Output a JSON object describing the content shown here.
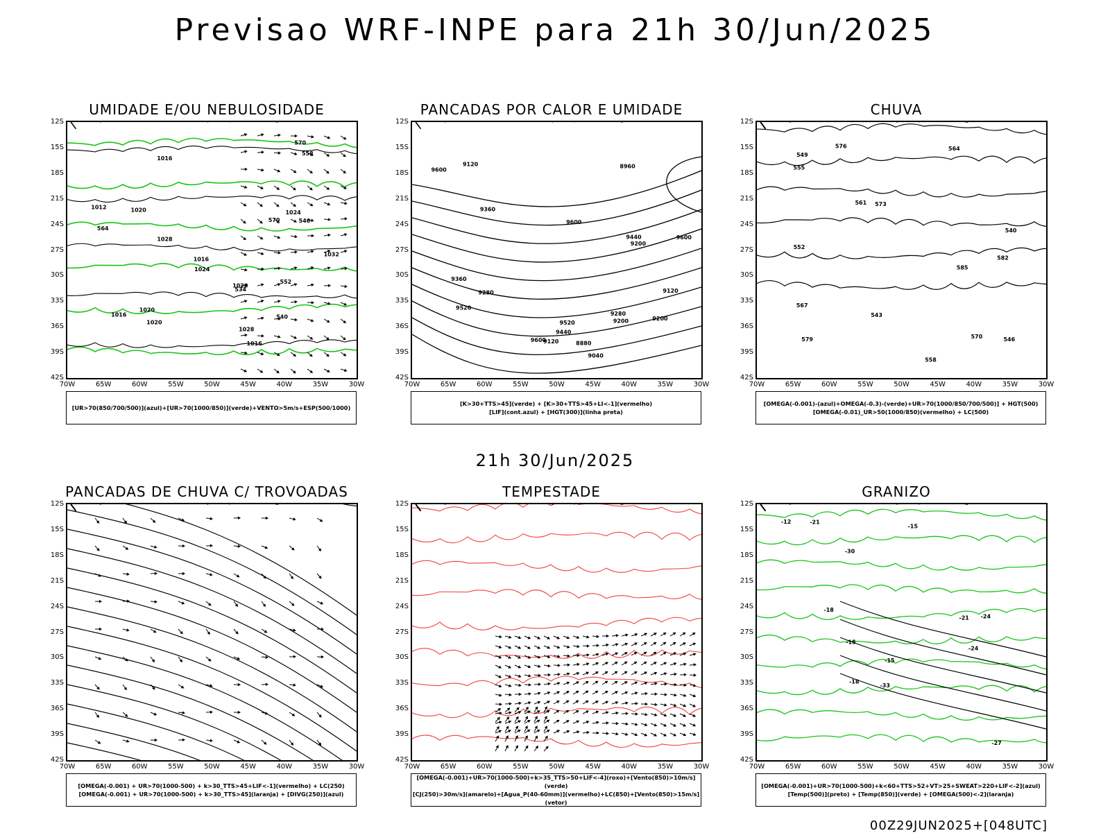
{
  "header": {
    "title": "Previsao WRF-INPE  para 21h 30/Jun/2025"
  },
  "middle": {
    "title": "21h 30/Jun/2025"
  },
  "footer": {
    "run": "00Z29JUN2025+[048UTC]"
  },
  "axes": {
    "lat_labels": [
      "12S",
      "15S",
      "18S",
      "21S",
      "24S",
      "27S",
      "30S",
      "33S",
      "36S",
      "39S",
      "42S"
    ],
    "lon_labels": [
      "70W",
      "65W",
      "60W",
      "55W",
      "50W",
      "45W",
      "40W",
      "35W",
      "30W"
    ]
  },
  "panels": [
    {
      "id": "umidade",
      "title": "UMIDADE E/OU NEBULOSIDADE",
      "legend": [
        "[UR>70(850/700/500)](azul)+[UR>70(1000/850)](verde)+VENTO>5m/s+ESP(500/1000)"
      ],
      "labels": [
        "1016",
        "1016",
        "1020",
        "1020",
        "1024",
        "1028",
        "1032",
        "1028",
        "1024",
        "1020",
        "1016",
        "1012",
        "1016",
        "1020",
        "570",
        "570",
        "564",
        "558",
        "552",
        "546",
        "540",
        "534"
      ]
    },
    {
      "id": "pancadas-calor",
      "title": "PANCADAS POR CALOR E UMIDADE",
      "legend": [
        "[K>30+TTS>45](verde) + [K>30+TTS>45+LI<-1](vermelho)",
        "[LIF](cont.azul) + [HGT(300)](linha preta)"
      ],
      "labels": [
        "9600",
        "9520",
        "9600",
        "9600",
        "9600",
        "9520",
        "9440",
        "9360",
        "9440",
        "9360",
        "9280",
        "9200",
        "9120",
        "9040",
        "8960",
        "8880",
        "9280",
        "9200",
        "9120",
        "9200",
        "9120"
      ]
    },
    {
      "id": "chuva",
      "title": "CHUVA",
      "legend": [
        "[OMEGA(-0.001)-(azul)+OMEGA(-0.3)-(verde)+UR>70(1000/850/700/500)] + HGT(500)",
        "[OMEGA(-0.01)_UR>50(1000/850)(vermelho) + LC(500)"
      ],
      "labels": [
        "585",
        "582",
        "579",
        "576",
        "573",
        "570",
        "567",
        "564",
        "561",
        "558",
        "555",
        "552",
        "549",
        "546",
        "543",
        "540"
      ]
    },
    {
      "id": "trovoadas",
      "title": "PANCADAS DE CHUVA C/ TROVOADAS",
      "legend": [
        "[OMEGA(-0.001) + UR>70(1000-500) + k>30_TTS>45+LIF<-1](vermelho) + LC(250)",
        "[OMEGA(-0.001) + UR>70(1000-500) + k>30_TTS>45](laranja) + [DIVG(250)](azul)"
      ],
      "labels": []
    },
    {
      "id": "tempestade",
      "title": "TEMPESTADE",
      "legend": [
        "[OMEGA(-0.001)+UR>70(1000-500)+k>35_TTS>50+LIF<-4](roxo)+[Vento(850)>10m/s](verde)",
        "[CJ(250)>30m/s](amarelo)+[Agua_P(40-60mm)](vermelho)+LC(850)+[Vento(850)>15m/s](vetor)"
      ],
      "labels": []
    },
    {
      "id": "granizo",
      "title": "GRANIZO",
      "legend": [
        "[OMEGA(-0.001)+UR>70(1000-500)+k<60+TTS>52+VT>25+SWEAT>220+LIF<-2](azul)",
        "[Temp(500)](preto) + [Temp(850)](verde) + [OMEGA(500)<-2](laranja)"
      ],
      "labels": [
        "-15",
        "-18",
        "-21",
        "-24",
        "-27",
        "-30",
        "-33",
        "-15",
        "-18",
        "-21",
        "-24",
        "-15",
        "-12"
      ]
    }
  ],
  "colors": {
    "blue": "#1f3ee0",
    "green": "#18c418",
    "red": "#f0413c",
    "orange": "#e07a1a",
    "yellow": "#e3d835",
    "lavender": "#a9aee8",
    "dark_teal": "#2c4a4a"
  }
}
